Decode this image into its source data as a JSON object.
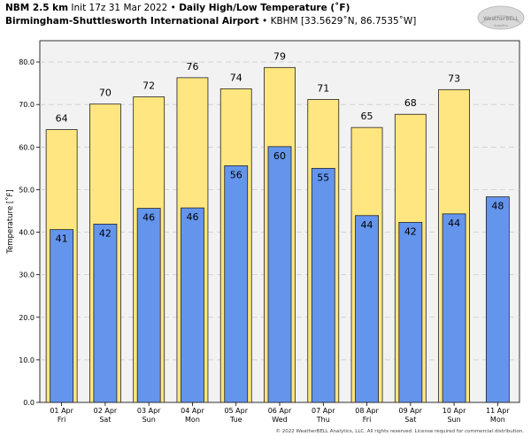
{
  "header": {
    "model": "NBM 2.5 km",
    "init": "Init 17z 31 Mar 2022",
    "bullet": "•",
    "title": "Daily High/Low Temperature (˚F)",
    "location": "Birmingham-Shuttlesworth International Airport",
    "station": "KBHM [33.5629˚N, 86.7535˚W]"
  },
  "logo": {
    "line1": "WeatherBELL",
    "line2": "Analytics"
  },
  "copyright": "© 2022 WeatherBELL Analytics, LLC. All rights reserved. License required for commercial distribution.",
  "colors": {
    "high": "#FFE680",
    "low": "#6495ED",
    "plot_bg": "#F2F2F2",
    "grid": "#CCCCCC"
  },
  "chart_data": {
    "type": "bar",
    "title": "Daily High/Low Temperature (˚F)",
    "ylabel": "Temperature [˚F]",
    "ylim": [
      0,
      85
    ],
    "yticks": [
      "0.0",
      "10.0",
      "20.0",
      "30.0",
      "40.0",
      "50.0",
      "60.0",
      "70.0",
      "80.0"
    ],
    "categories": [
      {
        "date": "01 Apr",
        "day": "Fri"
      },
      {
        "date": "02 Apr",
        "day": "Sat"
      },
      {
        "date": "03 Apr",
        "day": "Sun"
      },
      {
        "date": "04 Apr",
        "day": "Mon"
      },
      {
        "date": "05 Apr",
        "day": "Tue"
      },
      {
        "date": "06 Apr",
        "day": "Wed"
      },
      {
        "date": "07 Apr",
        "day": "Thu"
      },
      {
        "date": "08 Apr",
        "day": "Fri"
      },
      {
        "date": "09 Apr",
        "day": "Sat"
      },
      {
        "date": "10 Apr",
        "day": "Sun"
      },
      {
        "date": "11 Apr",
        "day": "Mon"
      }
    ],
    "series": [
      {
        "name": "High",
        "values": [
          64,
          70,
          72,
          76,
          74,
          79,
          71,
          65,
          68,
          73,
          null
        ],
        "display": [
          64.1,
          70.1,
          71.8,
          76.3,
          73.7,
          78.7,
          71.2,
          64.6,
          67.7,
          73.5,
          null
        ]
      },
      {
        "name": "Low",
        "values": [
          41,
          42,
          46,
          46,
          56,
          60,
          55,
          44,
          42,
          44,
          48
        ],
        "display": [
          40.6,
          41.9,
          45.6,
          45.7,
          55.6,
          60.1,
          55.0,
          43.9,
          42.3,
          44.3,
          48.3
        ]
      }
    ],
    "grid": true
  }
}
